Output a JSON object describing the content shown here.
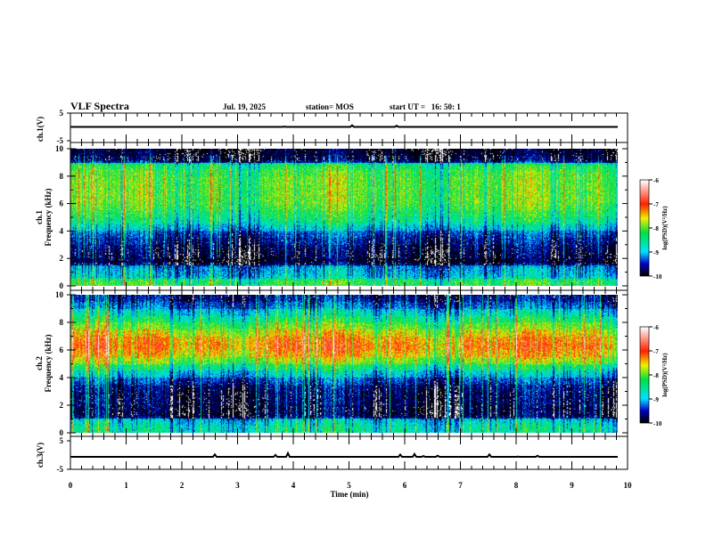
{
  "header": {
    "title": "VLF Spectra",
    "date": "Jul. 19, 2025",
    "station": "station= MOS",
    "start": "start UT =   16: 50: 1"
  },
  "chart_data": [
    {
      "type": "line",
      "name": "ch1-voltage",
      "ylabel": "ch.1(V)",
      "ylim": [
        -5,
        5
      ],
      "ytick_labels": [
        "5",
        "-5"
      ],
      "xlim": [
        0,
        10
      ],
      "trace_level": 0
    },
    {
      "type": "heatmap",
      "name": "ch1-spectrogram",
      "ylabel_line1": "ch.1",
      "ylabel_line2": "Frequency (kHz)",
      "ylim": [
        0,
        10
      ],
      "ytick_labels": [
        "0",
        "2",
        "4",
        "6",
        "8",
        "10"
      ],
      "xlim": [
        0,
        10
      ],
      "data_end_min": 9.82,
      "freq_bins_khz": [
        0.25,
        0.75,
        1.25,
        1.75,
        2.25,
        2.75,
        3.25,
        3.75,
        4.25,
        4.75,
        5.25,
        5.75,
        6.25,
        6.75,
        7.25,
        7.75,
        8.25,
        8.75,
        9.25,
        9.75
      ],
      "mean_log_psd": [
        -8.2,
        -9.0,
        -9.1,
        -10,
        -9.9,
        -9.8,
        -9.6,
        -9.4,
        -8.9,
        -8.5,
        -8.3,
        -8.1,
        -8.0,
        -8.0,
        -8.0,
        -8.0,
        -8.1,
        -8.3,
        -9.9,
        -10
      ]
    },
    {
      "type": "heatmap",
      "name": "ch2-spectrogram",
      "ylabel_line1": "ch.2",
      "ylabel_line2": "Frequency (kHz)",
      "ylim": [
        0,
        10
      ],
      "ytick_labels": [
        "0",
        "2",
        "4",
        "6",
        "8",
        "10"
      ],
      "xlim": [
        0,
        10
      ],
      "data_end_min": 9.82,
      "freq_bins_khz": [
        0.25,
        0.75,
        1.25,
        1.75,
        2.25,
        2.75,
        3.25,
        3.75,
        4.25,
        4.75,
        5.25,
        5.75,
        6.25,
        6.75,
        7.25,
        7.75,
        8.25,
        8.75,
        9.25,
        9.75
      ],
      "mean_log_psd": [
        -8.6,
        -8.8,
        -9.9,
        -9.9,
        -9.8,
        -9.8,
        -9.7,
        -9.4,
        -8.9,
        -8.4,
        -7.8,
        -7.4,
        -7.2,
        -7.3,
        -7.6,
        -8.0,
        -8.4,
        -8.8,
        -9.3,
        -9.6
      ]
    },
    {
      "type": "line",
      "name": "ch3-voltage",
      "ylabel": "ch.3(V)",
      "ylim": [
        -5,
        5
      ],
      "ytick_labels": [
        "5",
        "-5"
      ],
      "xlim": [
        0,
        10
      ],
      "trace_level": 0
    }
  ],
  "xaxis": {
    "label": "Time (min)",
    "tick_labels": [
      "0",
      "1",
      "2",
      "3",
      "4",
      "5",
      "6",
      "7",
      "8",
      "9",
      "10"
    ]
  },
  "colorbar": {
    "label": "log(PSD)(V²/Hz)",
    "range": [
      -10,
      -6
    ],
    "tick_labels": [
      "-6",
      "-7",
      "-8",
      "-9",
      "-10"
    ],
    "colors": [
      "#000000",
      "#0000c8",
      "#00e0ff",
      "#00e040",
      "#f0f000",
      "#ff2000",
      "#ffffff"
    ]
  }
}
